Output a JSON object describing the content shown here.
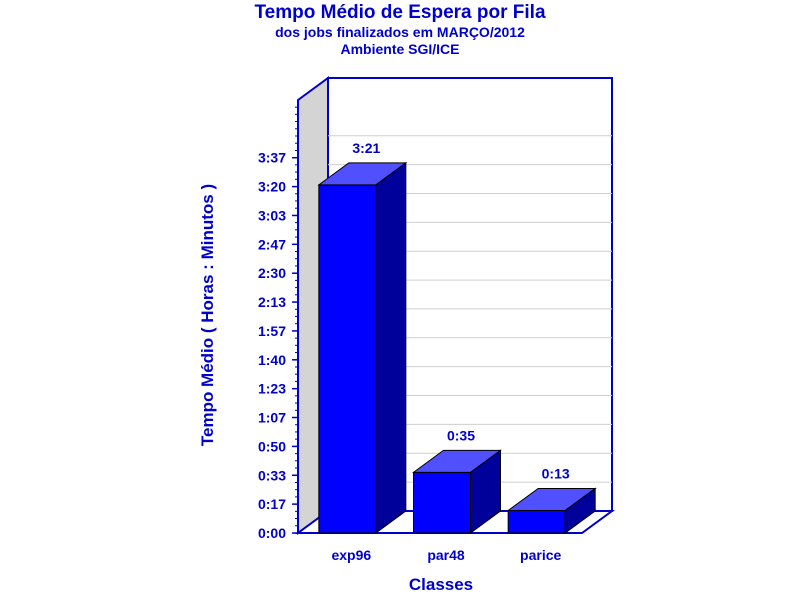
{
  "chart_data": {
    "type": "bar",
    "title": "Tempo Médio de Espera por Fila",
    "subtitle_lines": [
      "dos jobs finalizados em MARÇO/2012",
      "Ambiente SGI/ICE"
    ],
    "xlabel": "Classes",
    "ylabel": "Tempo Médio ( Horas : Minutos )",
    "y_unit": "minutes",
    "ylim": [
      0,
      250
    ],
    "y_ticks": [
      0,
      16.67,
      33.33,
      50,
      66.67,
      83.33,
      100,
      116.67,
      133.33,
      150,
      166.67,
      183.33,
      200,
      216.67
    ],
    "y_tick_labels": [
      "0:00",
      "0:17",
      "0:33",
      "0:50",
      "1:07",
      "1:23",
      "1:40",
      "1:57",
      "2:13",
      "2:30",
      "2:47",
      "3:03",
      "3:20",
      "3:37"
    ],
    "categories": [
      "exp96",
      "par48",
      "parice"
    ],
    "values": [
      201,
      35,
      13
    ],
    "value_labels": [
      "3:21",
      "0:35",
      "0:13"
    ],
    "grid": true,
    "style": "3d",
    "colors": {
      "text": "#0000cc",
      "bar_front": "#0000ff",
      "bar_top": "#5050ff",
      "bar_side": "#00009a",
      "frame": "#0000cc",
      "back_wall": "#ffffff",
      "side_wall": "#d4d4d4",
      "grid": "#cfcfcf"
    }
  }
}
